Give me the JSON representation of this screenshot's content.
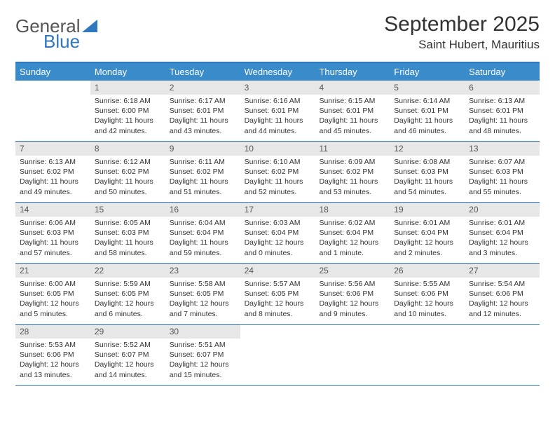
{
  "logo": {
    "text1": "General",
    "text2": "Blue"
  },
  "title": "September 2025",
  "location": "Saint Hubert, Mauritius",
  "colors": {
    "header_blue": "#3a8bca",
    "rule_blue": "#2f78bf",
    "daynum_bg": "#e7e7e7",
    "text": "#333333"
  },
  "day_names": [
    "Sunday",
    "Monday",
    "Tuesday",
    "Wednesday",
    "Thursday",
    "Friday",
    "Saturday"
  ],
  "start_offset": 1,
  "days": [
    {
      "n": 1,
      "sr": "6:18 AM",
      "ss": "6:00 PM",
      "dl": "11 hours and 42 minutes."
    },
    {
      "n": 2,
      "sr": "6:17 AM",
      "ss": "6:01 PM",
      "dl": "11 hours and 43 minutes."
    },
    {
      "n": 3,
      "sr": "6:16 AM",
      "ss": "6:01 PM",
      "dl": "11 hours and 44 minutes."
    },
    {
      "n": 4,
      "sr": "6:15 AM",
      "ss": "6:01 PM",
      "dl": "11 hours and 45 minutes."
    },
    {
      "n": 5,
      "sr": "6:14 AM",
      "ss": "6:01 PM",
      "dl": "11 hours and 46 minutes."
    },
    {
      "n": 6,
      "sr": "6:13 AM",
      "ss": "6:01 PM",
      "dl": "11 hours and 48 minutes."
    },
    {
      "n": 7,
      "sr": "6:13 AM",
      "ss": "6:02 PM",
      "dl": "11 hours and 49 minutes."
    },
    {
      "n": 8,
      "sr": "6:12 AM",
      "ss": "6:02 PM",
      "dl": "11 hours and 50 minutes."
    },
    {
      "n": 9,
      "sr": "6:11 AM",
      "ss": "6:02 PM",
      "dl": "11 hours and 51 minutes."
    },
    {
      "n": 10,
      "sr": "6:10 AM",
      "ss": "6:02 PM",
      "dl": "11 hours and 52 minutes."
    },
    {
      "n": 11,
      "sr": "6:09 AM",
      "ss": "6:02 PM",
      "dl": "11 hours and 53 minutes."
    },
    {
      "n": 12,
      "sr": "6:08 AM",
      "ss": "6:03 PM",
      "dl": "11 hours and 54 minutes."
    },
    {
      "n": 13,
      "sr": "6:07 AM",
      "ss": "6:03 PM",
      "dl": "11 hours and 55 minutes."
    },
    {
      "n": 14,
      "sr": "6:06 AM",
      "ss": "6:03 PM",
      "dl": "11 hours and 57 minutes."
    },
    {
      "n": 15,
      "sr": "6:05 AM",
      "ss": "6:03 PM",
      "dl": "11 hours and 58 minutes."
    },
    {
      "n": 16,
      "sr": "6:04 AM",
      "ss": "6:04 PM",
      "dl": "11 hours and 59 minutes."
    },
    {
      "n": 17,
      "sr": "6:03 AM",
      "ss": "6:04 PM",
      "dl": "12 hours and 0 minutes."
    },
    {
      "n": 18,
      "sr": "6:02 AM",
      "ss": "6:04 PM",
      "dl": "12 hours and 1 minute."
    },
    {
      "n": 19,
      "sr": "6:01 AM",
      "ss": "6:04 PM",
      "dl": "12 hours and 2 minutes."
    },
    {
      "n": 20,
      "sr": "6:01 AM",
      "ss": "6:04 PM",
      "dl": "12 hours and 3 minutes."
    },
    {
      "n": 21,
      "sr": "6:00 AM",
      "ss": "6:05 PM",
      "dl": "12 hours and 5 minutes."
    },
    {
      "n": 22,
      "sr": "5:59 AM",
      "ss": "6:05 PM",
      "dl": "12 hours and 6 minutes."
    },
    {
      "n": 23,
      "sr": "5:58 AM",
      "ss": "6:05 PM",
      "dl": "12 hours and 7 minutes."
    },
    {
      "n": 24,
      "sr": "5:57 AM",
      "ss": "6:05 PM",
      "dl": "12 hours and 8 minutes."
    },
    {
      "n": 25,
      "sr": "5:56 AM",
      "ss": "6:06 PM",
      "dl": "12 hours and 9 minutes."
    },
    {
      "n": 26,
      "sr": "5:55 AM",
      "ss": "6:06 PM",
      "dl": "12 hours and 10 minutes."
    },
    {
      "n": 27,
      "sr": "5:54 AM",
      "ss": "6:06 PM",
      "dl": "12 hours and 12 minutes."
    },
    {
      "n": 28,
      "sr": "5:53 AM",
      "ss": "6:06 PM",
      "dl": "12 hours and 13 minutes."
    },
    {
      "n": 29,
      "sr": "5:52 AM",
      "ss": "6:07 PM",
      "dl": "12 hours and 14 minutes."
    },
    {
      "n": 30,
      "sr": "5:51 AM",
      "ss": "6:07 PM",
      "dl": "12 hours and 15 minutes."
    }
  ],
  "labels": {
    "sunrise": "Sunrise:",
    "sunset": "Sunset:",
    "daylight": "Daylight:"
  }
}
